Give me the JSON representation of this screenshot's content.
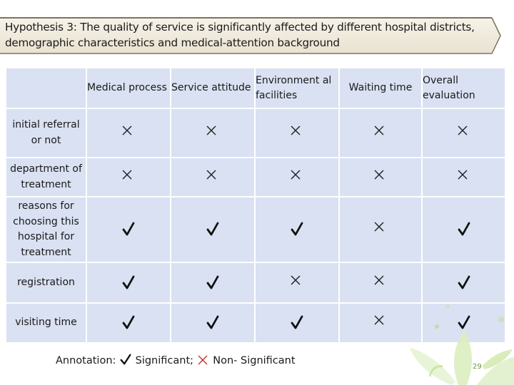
{
  "title": "Hypothesis 3: The quality of service is significantly affected by different hospital districts, demographic characteristics and medical-attention background",
  "table": {
    "columns": [
      "Medical process",
      "Service attitude",
      "Environment al facilities",
      "Waiting time",
      "Overall evaluation"
    ],
    "rows": [
      {
        "label": "initial referral or not",
        "values": [
          "non-significant",
          "non-significant",
          "non-significant",
          "non-significant",
          "non-significant"
        ]
      },
      {
        "label": "department of treatment",
        "values": [
          "non-significant",
          "non-significant",
          "non-significant",
          "non-significant",
          "non-significant"
        ]
      },
      {
        "label": "reasons for choosing this hospital for treatment",
        "values": [
          "significant",
          "significant",
          "significant",
          "non-significant",
          "significant"
        ]
      },
      {
        "label": "registration",
        "values": [
          "significant",
          "significant",
          "non-significant",
          "non-significant",
          "significant"
        ]
      },
      {
        "label": "visiting time",
        "values": [
          "significant",
          "significant",
          "significant",
          "non-significant",
          "significant"
        ]
      }
    ]
  },
  "annotation": {
    "prefix": "Annotation:",
    "significant_label": "Significant;",
    "non_significant_label": "Non- Significant"
  },
  "page_number": "29",
  "colors": {
    "cell_bg": "#d9e1f2",
    "check": "#111111",
    "cross": "#222222",
    "banner_bg": "#efe9da"
  },
  "icons": {
    "significant": "check-mark-icon",
    "non_significant": "cross-mark-icon"
  }
}
